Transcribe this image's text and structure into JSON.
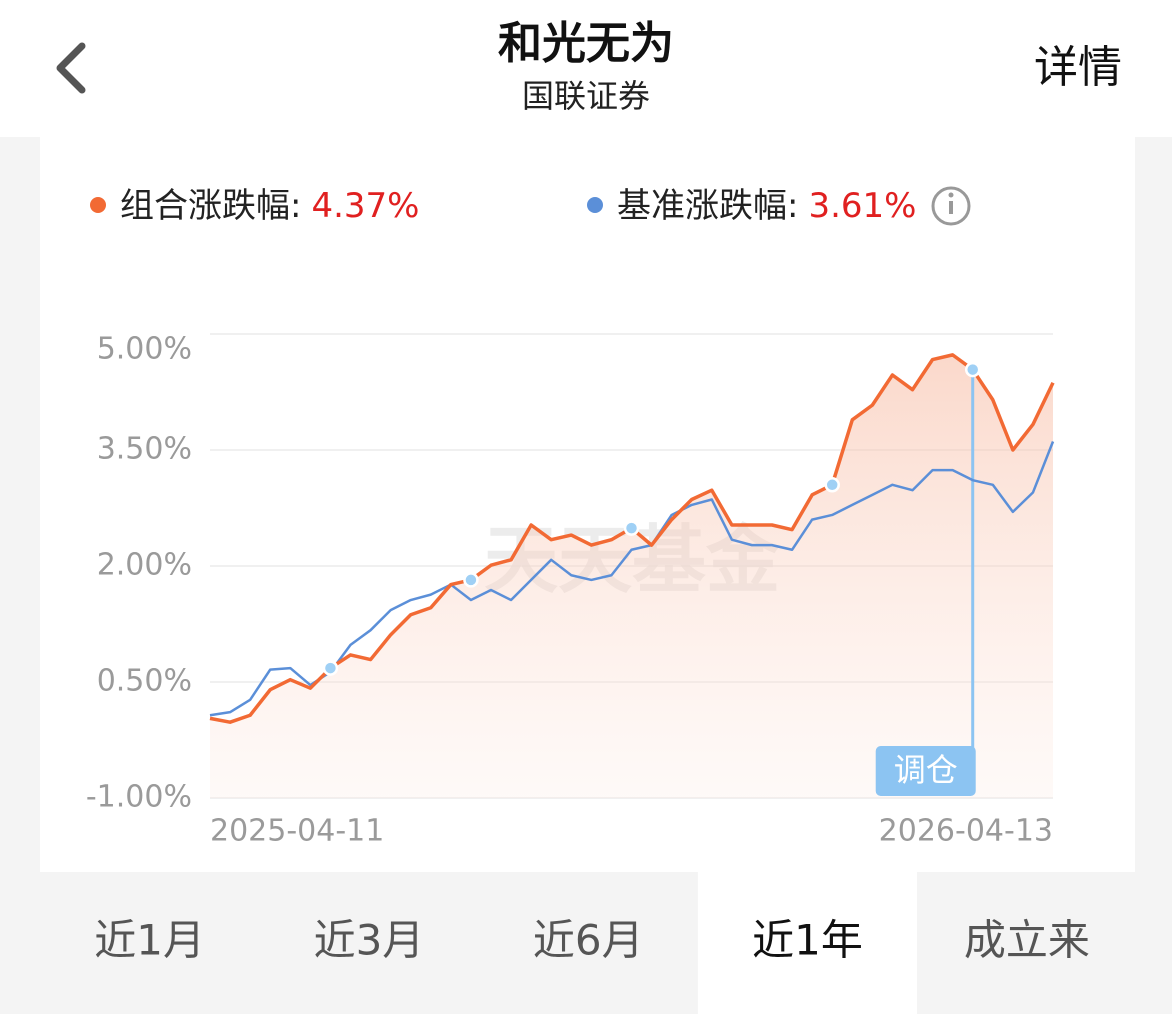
{
  "header": {
    "title": "和光无为",
    "subtitle": "国联证券",
    "detail": "详情"
  },
  "chart_data": {
    "type": "line",
    "legend": [
      {
        "label": "组合涨跌幅:",
        "value": "4.37%"
      },
      {
        "label": "基准涨跌幅:",
        "value": "3.61%"
      }
    ],
    "categories": [
      "2025-04-11",
      null,
      null,
      null,
      null,
      null,
      null,
      null,
      null,
      null,
      null,
      null,
      null,
      null,
      null,
      null,
      null,
      null,
      null,
      null,
      null,
      null,
      null,
      null,
      null,
      null,
      null,
      null,
      null,
      null,
      null,
      null,
      null,
      null,
      null,
      null,
      null,
      null,
      null,
      null,
      null,
      null,
      "2026-04-13"
    ],
    "series": [
      {
        "name": "组合",
        "color": "#f26a34",
        "values": [
          0.03,
          -0.02,
          0.07,
          0.4,
          0.53,
          0.42,
          0.68,
          0.85,
          0.79,
          1.11,
          1.37,
          1.46,
          1.76,
          1.82,
          2.01,
          2.08,
          2.53,
          2.34,
          2.4,
          2.27,
          2.34,
          2.49,
          2.27,
          2.6,
          2.86,
          2.98,
          2.53,
          2.53,
          2.53,
          2.47,
          2.92,
          3.05,
          3.89,
          4.08,
          4.47,
          4.28,
          4.67,
          4.73,
          4.54,
          4.15,
          3.5,
          3.83,
          4.37
        ]
      },
      {
        "name": "基准",
        "color": "#5b8fd8",
        "values": [
          0.07,
          0.11,
          0.27,
          0.66,
          0.68,
          0.46,
          0.63,
          0.98,
          1.17,
          1.43,
          1.56,
          1.63,
          1.76,
          1.56,
          1.69,
          1.56,
          1.82,
          2.08,
          1.88,
          1.82,
          1.88,
          2.21,
          2.27,
          2.66,
          2.79,
          2.86,
          2.34,
          2.27,
          2.27,
          2.21,
          2.6,
          2.66,
          2.79,
          2.92,
          3.05,
          2.98,
          3.24,
          3.24,
          3.11,
          3.05,
          2.7,
          2.95,
          3.61
        ]
      }
    ],
    "ylim": [
      -1,
      5
    ],
    "yticks": [
      {
        "value": 5,
        "label": "5.00%"
      },
      {
        "value": 3.5,
        "label": "3.50%"
      },
      {
        "value": 2,
        "label": "2.00%"
      },
      {
        "value": 0.5,
        "label": "0.50%"
      },
      {
        "value": -1,
        "label": "-1.00%"
      }
    ],
    "grid": true,
    "watermark": "天天基金",
    "rebalance_points": [
      6,
      13,
      21,
      31,
      38
    ],
    "rebalance_label": "调仓"
  },
  "tabs": [
    "近1月",
    "近3月",
    "近6月",
    "近1年",
    "成立来"
  ],
  "selected_tab": 3
}
